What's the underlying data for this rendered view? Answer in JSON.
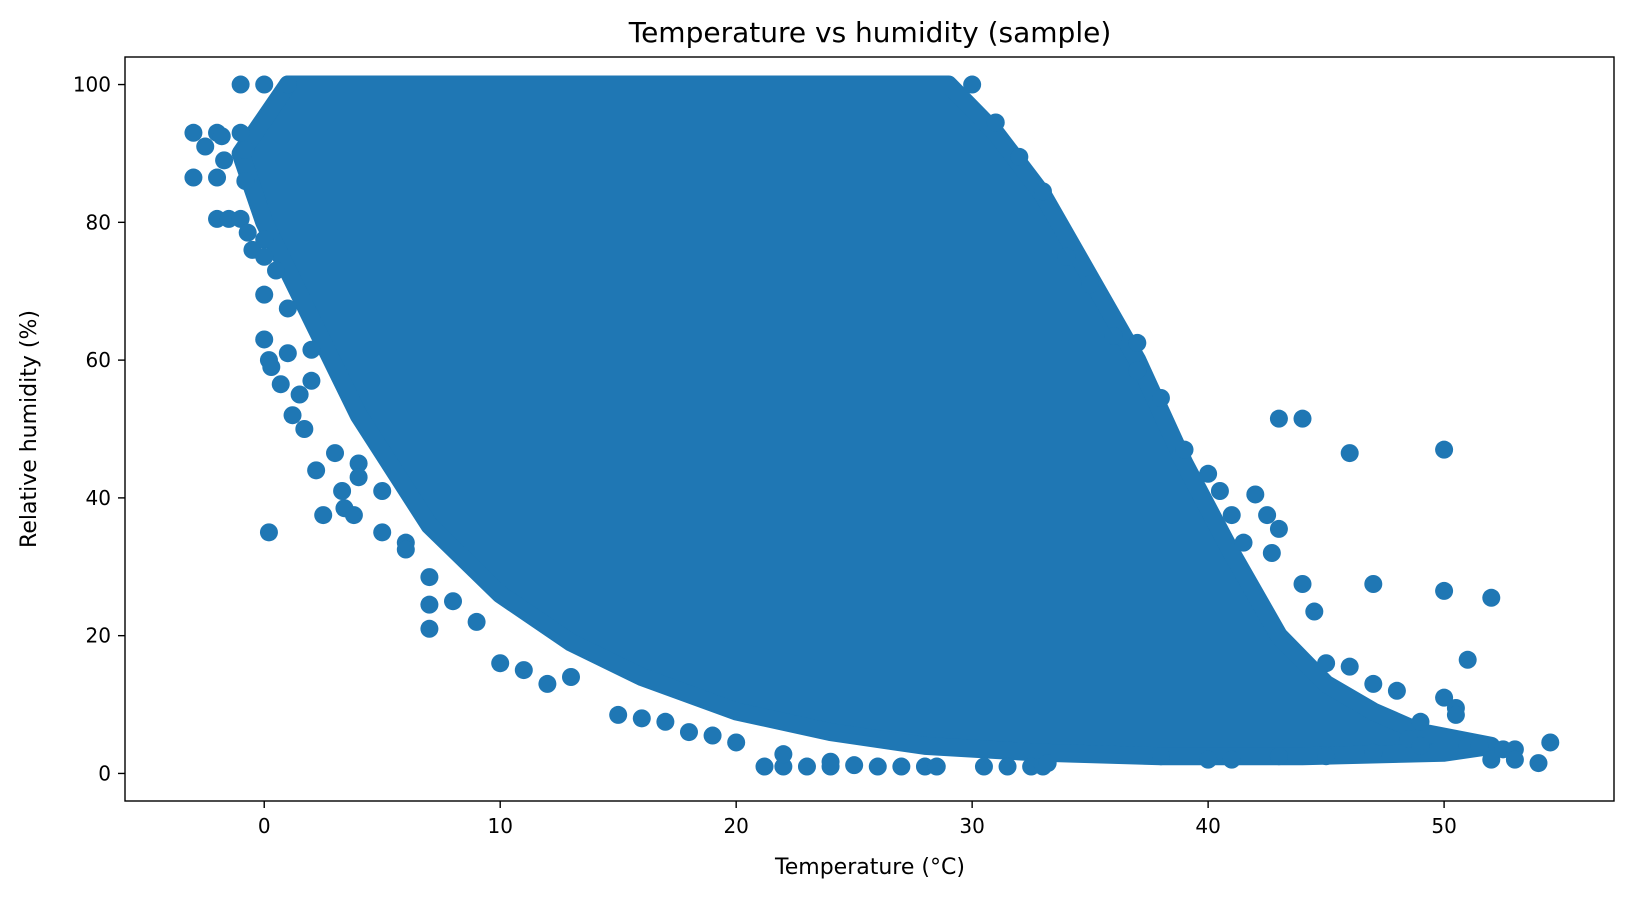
{
  "chart_data": {
    "type": "scatter",
    "title": "Temperature vs humidity (sample)",
    "xlabel": "Temperature (°C)",
    "ylabel": "Relative humidity (%)",
    "xlim": [
      -5.9,
      57.2
    ],
    "ylim": [
      -4,
      104
    ],
    "grid": false,
    "legend": "none",
    "point_color": "#1f77b4",
    "x_ticks": [
      0,
      10,
      20,
      30,
      40,
      50
    ],
    "y_ticks": [
      0,
      20,
      40,
      60,
      80,
      100
    ],
    "x_tick_labels": [
      "0",
      "10",
      "20",
      "30",
      "40",
      "50"
    ],
    "y_tick_labels": [
      "0",
      "20",
      "40",
      "60",
      "80",
      "100"
    ],
    "dense_region": {
      "upper_edge": [
        [
          1,
          100
        ],
        [
          29,
          100
        ],
        [
          31,
          93
        ],
        [
          33,
          84
        ],
        [
          35,
          72
        ],
        [
          37,
          60
        ],
        [
          39,
          45
        ],
        [
          41,
          32
        ],
        [
          43,
          20
        ],
        [
          45,
          13
        ],
        [
          47,
          9
        ],
        [
          49,
          6
        ],
        [
          52,
          4
        ]
      ],
      "lower_edge": [
        [
          -1,
          90
        ],
        [
          0,
          80
        ],
        [
          2,
          66
        ],
        [
          4,
          52
        ],
        [
          7,
          36
        ],
        [
          10,
          26
        ],
        [
          13,
          19
        ],
        [
          16,
          14
        ],
        [
          20,
          9
        ],
        [
          24,
          6
        ],
        [
          28,
          4
        ],
        [
          33,
          3
        ],
        [
          38,
          2.5
        ],
        [
          44,
          2.5
        ],
        [
          50,
          3
        ]
      ]
    },
    "points": [
      [
        -3,
        93
      ],
      [
        -3,
        86.5
      ],
      [
        -2.5,
        91
      ],
      [
        -2,
        93
      ],
      [
        -2,
        86.5
      ],
      [
        -2,
        80.5
      ],
      [
        -1.8,
        92.5
      ],
      [
        -1.7,
        89
      ],
      [
        -1.5,
        80.5
      ],
      [
        -1,
        100
      ],
      [
        -1,
        93
      ],
      [
        -1,
        80.5
      ],
      [
        -0.8,
        86
      ],
      [
        -0.8,
        90.5
      ],
      [
        -0.7,
        78.5
      ],
      [
        -0.5,
        76
      ],
      [
        0,
        100
      ],
      [
        0,
        77.5
      ],
      [
        0,
        75
      ],
      [
        0,
        69.5
      ],
      [
        0,
        63
      ],
      [
        0.2,
        60
      ],
      [
        0.3,
        59
      ],
      [
        0.2,
        35
      ],
      [
        0.7,
        56.5
      ],
      [
        0.5,
        73
      ],
      [
        1,
        100
      ],
      [
        1,
        67.5
      ],
      [
        1,
        61
      ],
      [
        1.2,
        52
      ],
      [
        1.5,
        55
      ],
      [
        1.7,
        50
      ],
      [
        2,
        57
      ],
      [
        2,
        61.5
      ],
      [
        2.2,
        44
      ],
      [
        2.5,
        37.5
      ],
      [
        3,
        46.5
      ],
      [
        3.3,
        41
      ],
      [
        3.4,
        38.5
      ],
      [
        3.8,
        37.5
      ],
      [
        4,
        45
      ],
      [
        4,
        43
      ],
      [
        5,
        41
      ],
      [
        5,
        35
      ],
      [
        6,
        33.5
      ],
      [
        6,
        32.5
      ],
      [
        7,
        28.5
      ],
      [
        7,
        24.5
      ],
      [
        7,
        21
      ],
      [
        8,
        25
      ],
      [
        9,
        22
      ],
      [
        10,
        16
      ],
      [
        11,
        15
      ],
      [
        12,
        13
      ],
      [
        13,
        14
      ],
      [
        15,
        8.5
      ],
      [
        16,
        8
      ],
      [
        17,
        7.5
      ],
      [
        18,
        6
      ],
      [
        19,
        5.5
      ],
      [
        20,
        4.5
      ],
      [
        21.2,
        1
      ],
      [
        22,
        1
      ],
      [
        22,
        2.8
      ],
      [
        23,
        1
      ],
      [
        24,
        1
      ],
      [
        24,
        1.7
      ],
      [
        25,
        1.2
      ],
      [
        26,
        1
      ],
      [
        27,
        1
      ],
      [
        28,
        1
      ],
      [
        28.5,
        1
      ],
      [
        30.5,
        1
      ],
      [
        31.5,
        1
      ],
      [
        32.5,
        1
      ],
      [
        33,
        1
      ],
      [
        33.2,
        1.5
      ],
      [
        30,
        100
      ],
      [
        31,
        94.5
      ],
      [
        32,
        89.5
      ],
      [
        33,
        84.5
      ],
      [
        34,
        75
      ],
      [
        35,
        71
      ],
      [
        36,
        63.5
      ],
      [
        37,
        62.5
      ],
      [
        37,
        58.5
      ],
      [
        38,
        54.5
      ],
      [
        39,
        47
      ],
      [
        40,
        43.5
      ],
      [
        40.5,
        41
      ],
      [
        41,
        37.5
      ],
      [
        41.5,
        33.5
      ],
      [
        42,
        40.5
      ],
      [
        42.5,
        37.5
      ],
      [
        42.7,
        32
      ],
      [
        43,
        35.5
      ],
      [
        43,
        51.5
      ],
      [
        44,
        51.5
      ],
      [
        44,
        27.5
      ],
      [
        44.5,
        23.5
      ],
      [
        45,
        16
      ],
      [
        46,
        46.5
      ],
      [
        46,
        15.5
      ],
      [
        47,
        27.5
      ],
      [
        47,
        13
      ],
      [
        48,
        12
      ],
      [
        48.5,
        5
      ],
      [
        49,
        7.5
      ],
      [
        50,
        47
      ],
      [
        50,
        26.5
      ],
      [
        50,
        11
      ],
      [
        50.5,
        9.5
      ],
      [
        50.5,
        8.5
      ],
      [
        51,
        16.5
      ],
      [
        51,
        4
      ],
      [
        51.5,
        4
      ],
      [
        52,
        25.5
      ],
      [
        52,
        2
      ],
      [
        52.5,
        3.5
      ],
      [
        53,
        3.5
      ],
      [
        53,
        2
      ],
      [
        54,
        1.5
      ],
      [
        54.5,
        4.5
      ],
      [
        49,
        4
      ],
      [
        47,
        3
      ],
      [
        45,
        2.5
      ],
      [
        43,
        2.5
      ],
      [
        41,
        2
      ],
      [
        40,
        2
      ],
      [
        38,
        2.5
      ]
    ]
  }
}
